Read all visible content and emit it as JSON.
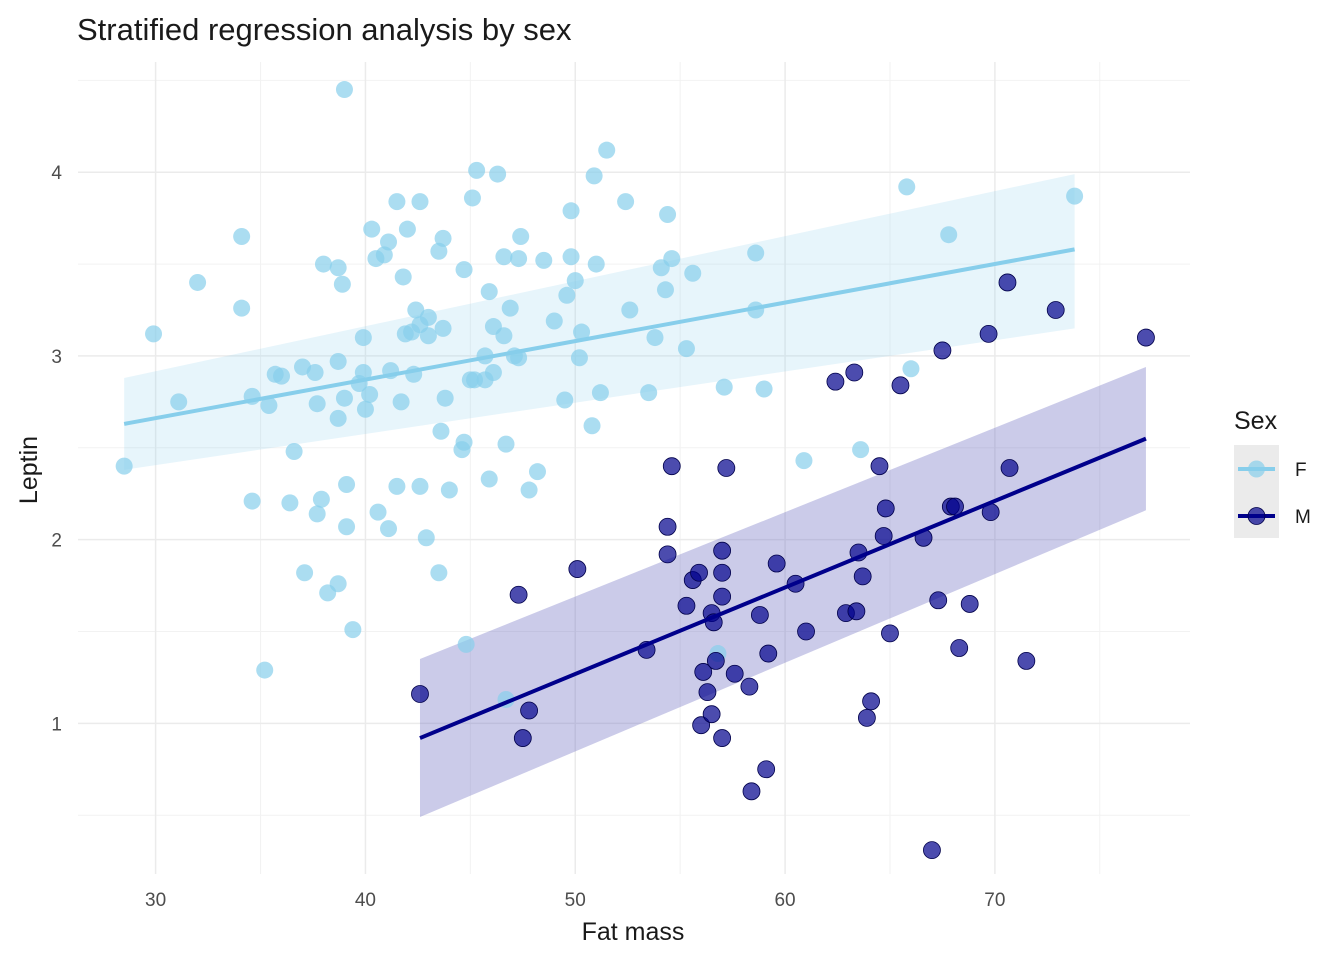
{
  "chart_data": {
    "type": "scatter",
    "title": "Stratified regression analysis by sex",
    "xlabel": "Fat mass",
    "ylabel": "Leptin",
    "xlim": [
      26.3,
      79.3
    ],
    "ylim": [
      0.18,
      4.6
    ],
    "x_ticks": [
      30,
      40,
      50,
      60,
      70
    ],
    "y_ticks": [
      1,
      2,
      3,
      4
    ],
    "grid": true,
    "legend": {
      "title": "Sex",
      "position": "right",
      "entries": [
        "F",
        "M"
      ]
    },
    "series": [
      {
        "name": "F",
        "color": "#87CEEB",
        "points": [
          [
            28.5,
            2.4
          ],
          [
            29.9,
            3.12
          ],
          [
            31.1,
            2.75
          ],
          [
            32.0,
            3.4
          ],
          [
            34.1,
            3.65
          ],
          [
            34.1,
            3.26
          ],
          [
            34.6,
            2.78
          ],
          [
            34.6,
            2.21
          ],
          [
            35.2,
            1.29
          ],
          [
            35.4,
            2.73
          ],
          [
            35.7,
            2.9
          ],
          [
            36.0,
            2.89
          ],
          [
            36.4,
            2.2
          ],
          [
            36.6,
            2.48
          ],
          [
            37.0,
            2.94
          ],
          [
            37.1,
            1.82
          ],
          [
            37.6,
            2.91
          ],
          [
            37.7,
            2.74
          ],
          [
            37.7,
            2.14
          ],
          [
            37.9,
            2.22
          ],
          [
            38.0,
            3.5
          ],
          [
            38.2,
            1.71
          ],
          [
            38.7,
            3.48
          ],
          [
            38.7,
            2.97
          ],
          [
            38.7,
            2.66
          ],
          [
            38.7,
            1.76
          ],
          [
            38.9,
            3.39
          ],
          [
            39.0,
            4.45
          ],
          [
            39.0,
            2.77
          ],
          [
            39.1,
            2.3
          ],
          [
            39.1,
            2.07
          ],
          [
            39.4,
            1.51
          ],
          [
            39.7,
            2.85
          ],
          [
            39.9,
            2.91
          ],
          [
            39.9,
            3.1
          ],
          [
            40.0,
            2.71
          ],
          [
            40.2,
            2.79
          ],
          [
            40.3,
            3.69
          ],
          [
            40.5,
            3.53
          ],
          [
            40.6,
            2.15
          ],
          [
            40.9,
            3.55
          ],
          [
            41.1,
            3.62
          ],
          [
            41.1,
            2.06
          ],
          [
            41.2,
            2.92
          ],
          [
            41.5,
            3.84
          ],
          [
            41.5,
            2.29
          ],
          [
            41.7,
            2.75
          ],
          [
            41.8,
            3.43
          ],
          [
            41.9,
            3.12
          ],
          [
            42.0,
            3.69
          ],
          [
            42.2,
            3.13
          ],
          [
            42.3,
            2.9
          ],
          [
            42.4,
            3.25
          ],
          [
            42.6,
            3.84
          ],
          [
            42.6,
            2.29
          ],
          [
            42.6,
            3.17
          ],
          [
            42.9,
            2.01
          ],
          [
            43.0,
            3.21
          ],
          [
            43.0,
            3.11
          ],
          [
            43.5,
            1.82
          ],
          [
            43.5,
            3.57
          ],
          [
            43.6,
            2.59
          ],
          [
            43.7,
            3.64
          ],
          [
            43.7,
            3.15
          ],
          [
            43.8,
            2.77
          ],
          [
            44.0,
            2.27
          ],
          [
            44.6,
            2.49
          ],
          [
            44.7,
            3.47
          ],
          [
            44.7,
            2.53
          ],
          [
            44.8,
            1.43
          ],
          [
            45.0,
            2.87
          ],
          [
            45.1,
            3.86
          ],
          [
            45.2,
            2.87
          ],
          [
            45.3,
            4.01
          ],
          [
            45.7,
            2.87
          ],
          [
            45.7,
            3.0
          ],
          [
            45.9,
            3.35
          ],
          [
            45.9,
            2.33
          ],
          [
            46.1,
            3.16
          ],
          [
            46.1,
            2.91
          ],
          [
            46.3,
            3.99
          ],
          [
            46.6,
            3.54
          ],
          [
            46.6,
            3.11
          ],
          [
            46.7,
            2.52
          ],
          [
            46.7,
            1.13
          ],
          [
            46.9,
            3.26
          ],
          [
            47.1,
            3.0
          ],
          [
            47.3,
            3.53
          ],
          [
            47.3,
            2.99
          ],
          [
            47.4,
            3.65
          ],
          [
            47.8,
            2.27
          ],
          [
            48.2,
            2.37
          ],
          [
            48.5,
            3.52
          ],
          [
            49.0,
            3.19
          ],
          [
            49.5,
            2.76
          ],
          [
            49.6,
            3.33
          ],
          [
            49.8,
            3.79
          ],
          [
            49.8,
            3.54
          ],
          [
            50.0,
            3.41
          ],
          [
            50.2,
            2.99
          ],
          [
            50.3,
            3.13
          ],
          [
            50.8,
            2.62
          ],
          [
            50.9,
            3.98
          ],
          [
            51.0,
            3.5
          ],
          [
            51.2,
            2.8
          ],
          [
            51.5,
            4.12
          ],
          [
            52.4,
            3.84
          ],
          [
            52.6,
            3.25
          ],
          [
            53.5,
            2.8
          ],
          [
            53.8,
            3.1
          ],
          [
            54.1,
            3.48
          ],
          [
            54.3,
            3.36
          ],
          [
            54.4,
            3.77
          ],
          [
            54.6,
            3.53
          ],
          [
            55.3,
            3.04
          ],
          [
            55.6,
            3.45
          ],
          [
            56.8,
            1.38
          ],
          [
            57.1,
            2.83
          ],
          [
            58.6,
            3.56
          ],
          [
            58.6,
            3.25
          ],
          [
            59.0,
            2.82
          ],
          [
            60.9,
            2.43
          ],
          [
            63.6,
            2.49
          ],
          [
            65.8,
            3.92
          ],
          [
            66.0,
            2.93
          ],
          [
            67.8,
            3.66
          ],
          [
            73.8,
            3.87
          ]
        ],
        "fit": {
          "x": [
            28.5,
            73.8
          ],
          "y": [
            2.63,
            3.58
          ],
          "ci_lower": [
            2.38,
            3.15
          ],
          "ci_upper": [
            2.88,
            3.99
          ]
        }
      },
      {
        "name": "M",
        "color": "#00008B",
        "points": [
          [
            42.6,
            1.16
          ],
          [
            47.3,
            1.7
          ],
          [
            47.5,
            0.92
          ],
          [
            47.8,
            1.07
          ],
          [
            50.1,
            1.84
          ],
          [
            53.4,
            1.4
          ],
          [
            54.4,
            2.07
          ],
          [
            54.4,
            1.92
          ],
          [
            54.6,
            2.4
          ],
          [
            55.3,
            1.64
          ],
          [
            55.6,
            1.78
          ],
          [
            55.9,
            1.82
          ],
          [
            56.0,
            0.99
          ],
          [
            56.1,
            1.28
          ],
          [
            56.3,
            1.17
          ],
          [
            56.5,
            1.6
          ],
          [
            56.5,
            1.05
          ],
          [
            56.6,
            1.55
          ],
          [
            56.7,
            1.34
          ],
          [
            57.0,
            1.94
          ],
          [
            57.0,
            1.82
          ],
          [
            57.0,
            1.69
          ],
          [
            57.0,
            0.92
          ],
          [
            57.2,
            2.39
          ],
          [
            57.6,
            1.27
          ],
          [
            58.3,
            1.2
          ],
          [
            58.4,
            0.63
          ],
          [
            58.8,
            1.59
          ],
          [
            59.1,
            0.75
          ],
          [
            59.2,
            1.38
          ],
          [
            59.6,
            1.87
          ],
          [
            60.5,
            1.76
          ],
          [
            61.0,
            1.5
          ],
          [
            62.4,
            2.86
          ],
          [
            62.9,
            1.6
          ],
          [
            63.3,
            2.91
          ],
          [
            63.4,
            1.61
          ],
          [
            63.5,
            1.93
          ],
          [
            63.7,
            1.8
          ],
          [
            63.9,
            1.03
          ],
          [
            64.1,
            1.12
          ],
          [
            64.5,
            2.4
          ],
          [
            64.7,
            2.02
          ],
          [
            64.8,
            2.17
          ],
          [
            65.0,
            1.49
          ],
          [
            65.5,
            2.84
          ],
          [
            66.6,
            2.01
          ],
          [
            67.0,
            0.31
          ],
          [
            67.3,
            1.67
          ],
          [
            67.5,
            3.03
          ],
          [
            67.9,
            2.18
          ],
          [
            68.1,
            2.18
          ],
          [
            68.3,
            1.41
          ],
          [
            68.8,
            1.65
          ],
          [
            69.7,
            3.12
          ],
          [
            69.8,
            2.15
          ],
          [
            70.6,
            3.4
          ],
          [
            70.7,
            2.39
          ],
          [
            71.5,
            1.34
          ],
          [
            72.9,
            3.25
          ],
          [
            77.2,
            3.1
          ]
        ],
        "fit": {
          "x": [
            42.6,
            77.2
          ],
          "y": [
            0.92,
            2.55
          ],
          "ci_lower": [
            0.49,
            2.16
          ],
          "ci_upper": [
            1.35,
            2.94
          ]
        }
      }
    ]
  }
}
